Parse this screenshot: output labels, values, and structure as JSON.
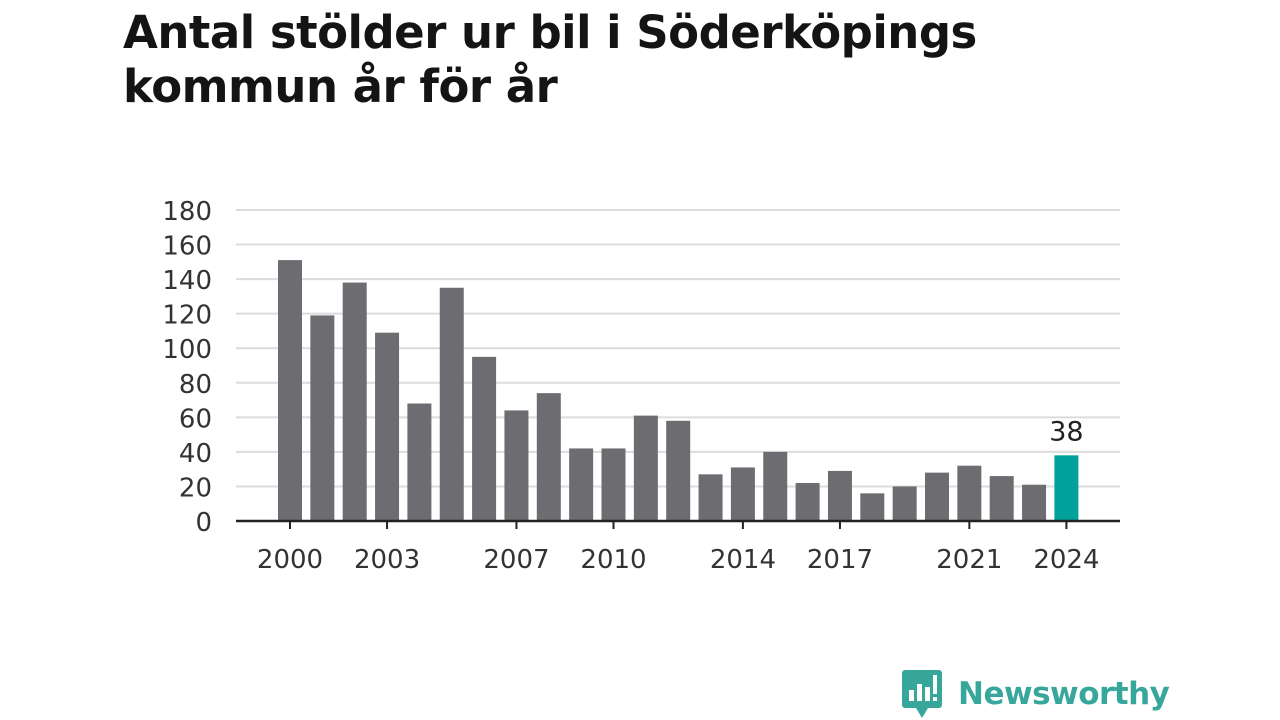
{
  "chart_data": {
    "type": "bar",
    "title": "Antal stölder ur bil i Söderköpings kommun år för år",
    "x": [
      2000,
      2001,
      2002,
      2003,
      2004,
      2005,
      2006,
      2007,
      2008,
      2009,
      2010,
      2011,
      2012,
      2013,
      2014,
      2015,
      2016,
      2017,
      2018,
      2019,
      2020,
      2021,
      2022,
      2023,
      2024
    ],
    "values": [
      151,
      119,
      138,
      109,
      68,
      135,
      95,
      64,
      74,
      42,
      42,
      61,
      58,
      27,
      31,
      40,
      22,
      29,
      16,
      20,
      28,
      32,
      26,
      21,
      38
    ],
    "x_tick_labels": [
      "2000",
      "2003",
      "2007",
      "2010",
      "2014",
      "2017",
      "2021",
      "2024"
    ],
    "ylim": [
      0,
      180
    ],
    "y_ticks": [
      0,
      20,
      40,
      60,
      80,
      100,
      120,
      140,
      160,
      180
    ],
    "grid": true,
    "highlight": {
      "year": 2024,
      "label": "38"
    },
    "xlabel": "",
    "ylabel": ""
  },
  "colors": {
    "bar": "#6d6c71",
    "highlight": "#00a19a",
    "grid": "#dcdcdc",
    "axis": "#222222",
    "brand": "#37a69b"
  },
  "branding": {
    "name": "Newsworthy",
    "icon": "newsworthy-chart-bubble-icon"
  }
}
